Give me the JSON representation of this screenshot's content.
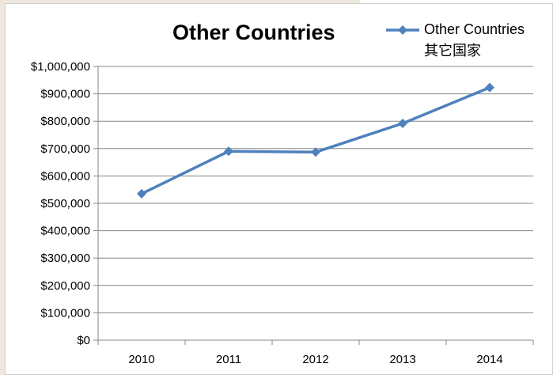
{
  "chart_data": {
    "type": "line",
    "title": "Other Countries",
    "xlabel": "",
    "ylabel": "",
    "categories": [
      "2010",
      "2011",
      "2012",
      "2013",
      "2014"
    ],
    "series": [
      {
        "name": "Other Countries",
        "name_sub": "其它国家",
        "values": [
          535000,
          690000,
          687000,
          792000,
          923000
        ],
        "color": "#4f81bd",
        "marker": "diamond"
      }
    ],
    "ylim": [
      0,
      1000000
    ],
    "yticks": [
      0,
      100000,
      200000,
      300000,
      400000,
      500000,
      600000,
      700000,
      800000,
      900000,
      1000000
    ],
    "ytick_labels": [
      "$0",
      "$100,000",
      "$200,000",
      "$300,000",
      "$400,000",
      "$500,000",
      "$600,000",
      "$700,000",
      "$800,000",
      "$900,000",
      "$1,000,000"
    ],
    "grid": true,
    "legend_position": "top-right",
    "gridline_color": "#868686",
    "background_color": "#ffffff"
  }
}
